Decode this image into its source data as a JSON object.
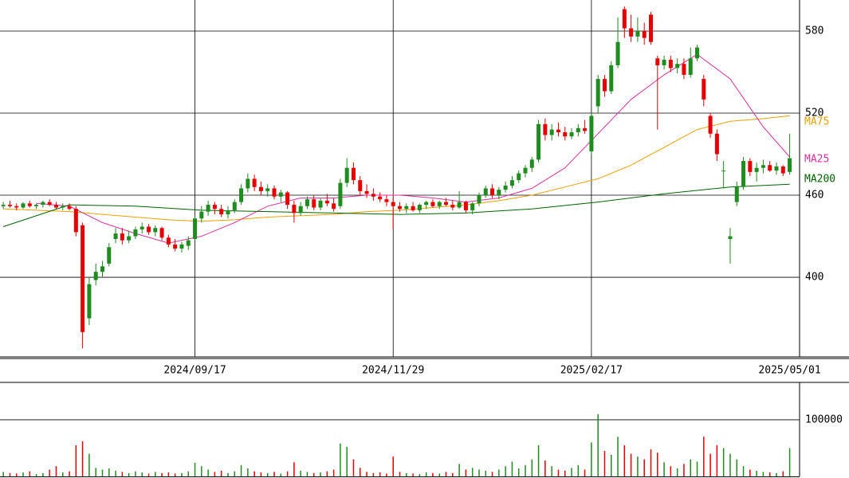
{
  "chart_data": {
    "type": "candlestick",
    "up_color": "#1e8c1e",
    "down_color": "#e60000",
    "xlim": [
      -0.5,
      120.5
    ],
    "xticks": [
      {
        "value": 29,
        "label": "2024/09/17"
      },
      {
        "value": 59,
        "label": "2024/11/29"
      },
      {
        "value": 89,
        "label": "2025/02/17"
      },
      {
        "value": 119,
        "label": "2025/05/01"
      }
    ],
    "ylim": [
      341.8,
      602.7
    ],
    "yticks": [
      400,
      460,
      520,
      580
    ],
    "grid": true,
    "ohlc": [
      [
        452,
        455,
        450,
        453
      ],
      [
        453,
        456,
        451,
        452
      ],
      [
        452,
        454,
        449,
        451
      ],
      [
        451,
        455,
        450,
        454
      ],
      [
        454,
        456,
        451,
        452
      ],
      [
        452,
        454,
        450,
        453
      ],
      [
        453,
        456,
        451,
        455
      ],
      [
        455,
        457,
        452,
        453
      ],
      [
        453,
        455,
        450,
        451
      ],
      [
        451,
        454,
        449,
        452
      ],
      [
        452,
        454,
        449,
        450
      ],
      [
        450,
        452,
        430,
        433
      ],
      [
        438,
        440,
        348,
        360
      ],
      [
        370,
        400,
        365,
        395
      ],
      [
        398,
        410,
        394,
        404
      ],
      [
        404,
        412,
        400,
        408
      ],
      [
        410,
        425,
        408,
        422
      ],
      [
        428,
        436,
        425,
        432
      ],
      [
        432,
        436,
        424,
        427
      ],
      [
        427,
        434,
        425,
        430
      ],
      [
        430,
        437,
        428,
        435
      ],
      [
        435,
        440,
        432,
        437
      ],
      [
        437,
        439,
        431,
        433
      ],
      [
        433,
        438,
        430,
        436
      ],
      [
        436,
        437,
        427,
        429
      ],
      [
        429,
        431,
        422,
        424
      ],
      [
        424,
        428,
        419,
        421
      ],
      [
        421,
        426,
        418,
        424
      ],
      [
        423,
        430,
        420,
        427
      ],
      [
        428,
        445,
        427,
        443
      ],
      [
        443,
        452,
        440,
        448
      ],
      [
        448,
        456,
        445,
        453
      ],
      [
        453,
        455,
        446,
        450
      ],
      [
        450,
        453,
        444,
        446
      ],
      [
        446,
        452,
        443,
        449
      ],
      [
        449,
        457,
        447,
        455
      ],
      [
        455,
        468,
        453,
        465
      ],
      [
        465,
        476,
        462,
        472
      ],
      [
        472,
        475,
        463,
        466
      ],
      [
        466,
        470,
        460,
        463
      ],
      [
        463,
        468,
        459,
        465
      ],
      [
        465,
        467,
        457,
        459
      ],
      [
        459,
        464,
        455,
        462
      ],
      [
        462,
        463,
        450,
        453
      ],
      [
        453,
        456,
        440,
        447
      ],
      [
        447,
        455,
        445,
        452
      ],
      [
        452,
        459,
        450,
        457
      ],
      [
        457,
        460,
        449,
        451
      ],
      [
        451,
        458,
        449,
        456
      ],
      [
        456,
        461,
        452,
        454
      ],
      [
        454,
        458,
        448,
        450
      ],
      [
        452,
        472,
        450,
        469
      ],
      [
        469,
        487,
        466,
        480
      ],
      [
        480,
        484,
        468,
        471
      ],
      [
        471,
        474,
        460,
        463
      ],
      [
        463,
        468,
        458,
        461
      ],
      [
        461,
        465,
        456,
        459
      ],
      [
        459,
        462,
        455,
        457
      ],
      [
        457,
        460,
        452,
        455
      ],
      [
        455,
        458,
        435,
        452
      ],
      [
        452,
        455,
        448,
        450
      ],
      [
        450,
        454,
        447,
        452
      ],
      [
        452,
        455,
        448,
        449
      ],
      [
        449,
        454,
        447,
        453
      ],
      [
        453,
        456,
        450,
        455
      ],
      [
        455,
        457,
        451,
        452
      ],
      [
        452,
        456,
        450,
        455
      ],
      [
        455,
        458,
        452,
        453
      ],
      [
        453,
        456,
        449,
        451
      ],
      [
        451,
        463,
        450,
        455
      ],
      [
        455,
        456,
        447,
        449
      ],
      [
        449,
        455,
        446,
        454
      ],
      [
        454,
        462,
        452,
        460
      ],
      [
        460,
        467,
        458,
        465
      ],
      [
        465,
        468,
        458,
        460
      ],
      [
        460,
        466,
        457,
        464
      ],
      [
        464,
        470,
        462,
        467
      ],
      [
        467,
        474,
        465,
        471
      ],
      [
        471,
        478,
        469,
        476
      ],
      [
        476,
        482,
        473,
        480
      ],
      [
        480,
        488,
        477,
        486
      ],
      [
        486,
        515,
        484,
        512
      ],
      [
        512,
        516,
        500,
        504
      ],
      [
        504,
        512,
        500,
        508
      ],
      [
        508,
        513,
        503,
        506
      ],
      [
        506,
        510,
        500,
        503
      ],
      [
        503,
        509,
        501,
        506
      ],
      [
        506,
        512,
        503,
        509
      ],
      [
        509,
        515,
        505,
        507
      ],
      [
        492,
        520,
        490,
        518
      ],
      [
        525,
        548,
        520,
        545
      ],
      [
        545,
        548,
        532,
        536
      ],
      [
        536,
        558,
        534,
        555
      ],
      [
        555,
        590,
        553,
        572
      ],
      [
        596,
        598,
        575,
        582
      ],
      [
        582,
        592,
        572,
        576
      ],
      [
        576,
        590,
        572,
        580
      ],
      [
        580,
        586,
        570,
        575
      ],
      [
        592,
        594,
        570,
        572
      ],
      [
        560,
        562,
        508,
        555
      ],
      [
        555,
        562,
        552,
        559
      ],
      [
        559,
        562,
        550,
        553
      ],
      [
        553,
        560,
        549,
        556
      ],
      [
        556,
        560,
        545,
        548
      ],
      [
        548,
        568,
        546,
        560
      ],
      [
        560,
        570,
        558,
        568
      ],
      [
        545,
        548,
        525,
        530
      ],
      [
        518,
        520,
        502,
        505
      ],
      [
        505,
        508,
        485,
        490
      ],
      [
        478,
        485,
        465,
        478
      ],
      [
        428,
        436,
        410,
        430
      ],
      [
        455,
        470,
        452,
        466
      ],
      [
        466,
        488,
        464,
        485
      ],
      [
        485,
        487,
        474,
        477
      ],
      [
        477,
        484,
        470,
        480
      ],
      [
        480,
        486,
        476,
        482
      ],
      [
        482,
        485,
        477,
        478
      ],
      [
        478,
        484,
        475,
        481
      ],
      [
        481,
        482,
        474,
        476
      ],
      [
        477,
        505,
        475,
        487
      ]
    ],
    "series": [
      {
        "name": "MA75",
        "color": "#f0a000",
        "x": [
          0,
          5,
          10,
          15,
          20,
          25,
          30,
          35,
          40,
          45,
          50,
          55,
          60,
          65,
          70,
          75,
          80,
          85,
          90,
          95,
          100,
          105,
          110,
          115,
          119
        ],
        "values": [
          450,
          449,
          448,
          446,
          444,
          442,
          441,
          442,
          444,
          445,
          446,
          448,
          449,
          451,
          453,
          456,
          460,
          466,
          472,
          482,
          495,
          508,
          514,
          516,
          518
        ]
      },
      {
        "name": "MA25",
        "color": "#e030a0",
        "x": [
          5,
          10,
          15,
          20,
          25,
          30,
          35,
          40,
          45,
          50,
          55,
          60,
          65,
          70,
          75,
          80,
          85,
          90,
          95,
          100,
          105,
          110,
          115,
          119
        ],
        "values": [
          454,
          452,
          440,
          432,
          425,
          430,
          440,
          452,
          458,
          458,
          460,
          460,
          458,
          455,
          458,
          465,
          480,
          505,
          530,
          548,
          563,
          545,
          510,
          488
        ]
      },
      {
        "name": "MA200",
        "color": "#006400",
        "x": [
          0,
          10,
          20,
          30,
          40,
          50,
          60,
          70,
          80,
          90,
          100,
          110,
          119
        ],
        "values": [
          437,
          453,
          452,
          449,
          448,
          447,
          446,
          447,
          450,
          455,
          461,
          466,
          468
        ]
      }
    ],
    "volume": {
      "ylim": [
        0,
        166000
      ],
      "yticks": [
        100000
      ],
      "values": [
        8000,
        6000,
        5000,
        7000,
        9000,
        4000,
        6000,
        12000,
        18000,
        7000,
        9000,
        55000,
        62000,
        40000,
        15000,
        12000,
        14000,
        10000,
        8000,
        6000,
        9000,
        7000,
        5000,
        8000,
        6000,
        7000,
        5000,
        6000,
        9000,
        24000,
        18000,
        12000,
        8000,
        10000,
        6000,
        9000,
        20000,
        14000,
        9000,
        7000,
        6000,
        8000,
        5000,
        9000,
        25000,
        10000,
        8000,
        6000,
        7000,
        9000,
        12000,
        58000,
        52000,
        30000,
        15000,
        8000,
        6000,
        7000,
        5000,
        35000,
        8000,
        6000,
        5000,
        4000,
        7000,
        6000,
        5000,
        8000,
        6000,
        22000,
        12000,
        15000,
        12000,
        10000,
        8000,
        12000,
        18000,
        26000,
        14000,
        20000,
        30000,
        55000,
        28000,
        18000,
        12000,
        10000,
        15000,
        20000,
        12000,
        60000,
        110000,
        45000,
        38000,
        70000,
        55000,
        40000,
        35000,
        30000,
        48000,
        42000,
        25000,
        18000,
        14000,
        22000,
        30000,
        26000,
        70000,
        40000,
        55000,
        50000,
        40000,
        30000,
        18000,
        12000,
        10000,
        8000,
        7000,
        6000,
        9000,
        50000
      ]
    }
  }
}
